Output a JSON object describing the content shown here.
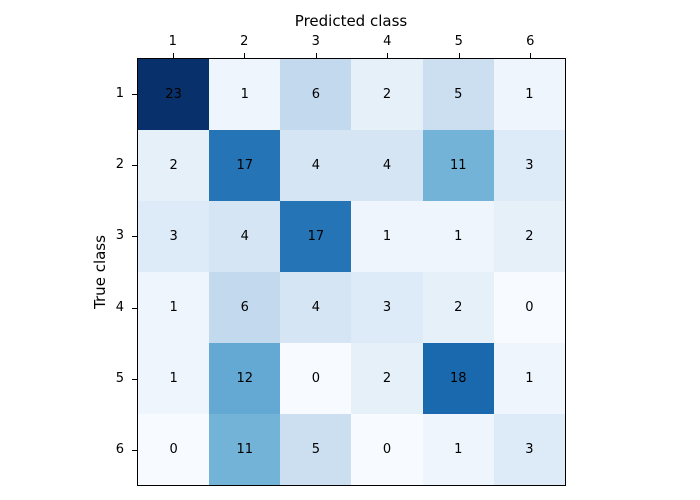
{
  "chart_data": {
    "type": "heatmap",
    "title": "",
    "xlabel": "Predicted class",
    "ylabel": "True class",
    "xlabel_position": "top",
    "x_tick_labels": [
      "1",
      "2",
      "3",
      "4",
      "5",
      "6"
    ],
    "y_tick_labels": [
      "1",
      "2",
      "3",
      "4",
      "5",
      "6"
    ],
    "tick_position": {
      "x": "top",
      "y": "left"
    },
    "matrix": [
      [
        23,
        1,
        6,
        2,
        5,
        1
      ],
      [
        2,
        17,
        4,
        4,
        11,
        3
      ],
      [
        3,
        4,
        17,
        1,
        1,
        2
      ],
      [
        1,
        6,
        4,
        3,
        2,
        0
      ],
      [
        1,
        12,
        0,
        2,
        18,
        1
      ],
      [
        0,
        11,
        5,
        0,
        1,
        3
      ]
    ],
    "vmin": 0,
    "vmax": 23,
    "colormap_name": "Blues",
    "colormap_anchors": [
      "#f7fbff",
      "#deebf7",
      "#c6dbef",
      "#9ecae1",
      "#6baed6",
      "#4292c6",
      "#2171b5",
      "#08519c",
      "#08306b"
    ],
    "cell_text_color": "#000000",
    "axis_border_color": "#000000",
    "background_color": "#ffffff",
    "grid": false,
    "legend": "none"
  }
}
